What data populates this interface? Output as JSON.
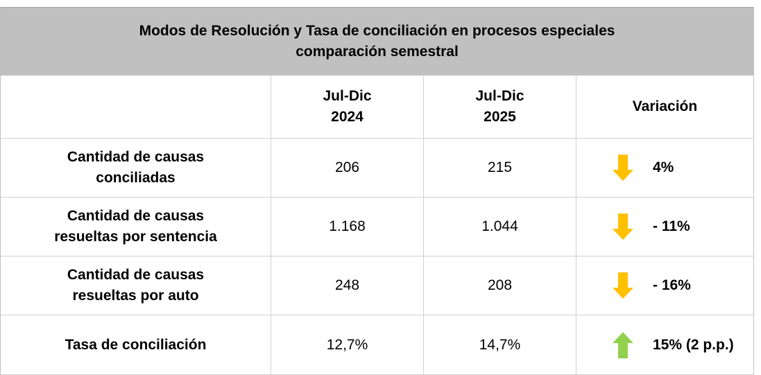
{
  "table": {
    "title": [
      "Modos de Resolución y Tasa de conciliación en procesos especiales",
      "comparación semestral"
    ],
    "header": [
      [
        "Jul-Dic",
        "2024"
      ],
      [
        "Jul-Dic",
        "2025"
      ],
      [
        "Variación"
      ]
    ],
    "rows": [
      {
        "label": [
          "Cantidad de causas",
          "conciliadas"
        ],
        "values": [
          "206",
          "215"
        ],
        "variation": "4%"
      },
      {
        "label": [
          "Cantidad de causas",
          "resueltas por sentencia"
        ],
        "values": [
          "1.168",
          "1.044"
        ],
        "variation": "- 11%"
      },
      {
        "label": [
          "Cantidad de causas",
          "resueltas por auto"
        ],
        "values": [
          "248",
          "208"
        ],
        "variation": "- 16%"
      },
      {
        "label": [
          "Tasa de conciliación"
        ],
        "values": [
          "12,7%",
          "14,7%"
        ],
        "variation": "15% (2 p.p.)"
      }
    ]
  }
}
